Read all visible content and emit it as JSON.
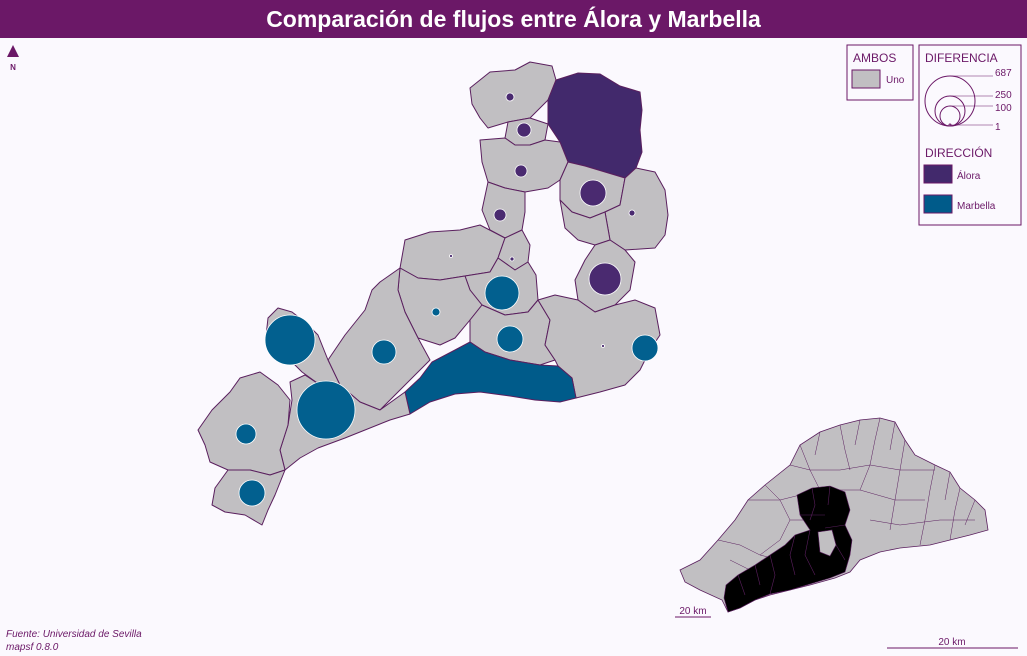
{
  "title": "Comparación de flujos entre Álora y Marbella",
  "north_label": "N",
  "legend": {
    "ambos": {
      "title": "AMBOS",
      "label": "Uno",
      "color": "#c1bfc2"
    },
    "diferencia": {
      "title": "DIFERENCIA",
      "values": [
        "687",
        "250",
        "100",
        "1"
      ]
    },
    "direccion": {
      "title": "DIRECCIÓN",
      "items": [
        {
          "label": "Álora",
          "color": "#42296c"
        },
        {
          "label": "Marbella",
          "color": "#005b8a"
        }
      ]
    }
  },
  "inset_scale_label": "20 km",
  "main_scale_label": "20 km",
  "source": {
    "line1": "Fuente: Universidad de Sevilla",
    "line2": "mapsf 0.8.0"
  },
  "colors": {
    "title_bar": "#6b1867",
    "uno": "#c1bfc2",
    "alora": "#42296c",
    "marbella": "#005b8a",
    "inset_highlight": "#000000"
  }
}
